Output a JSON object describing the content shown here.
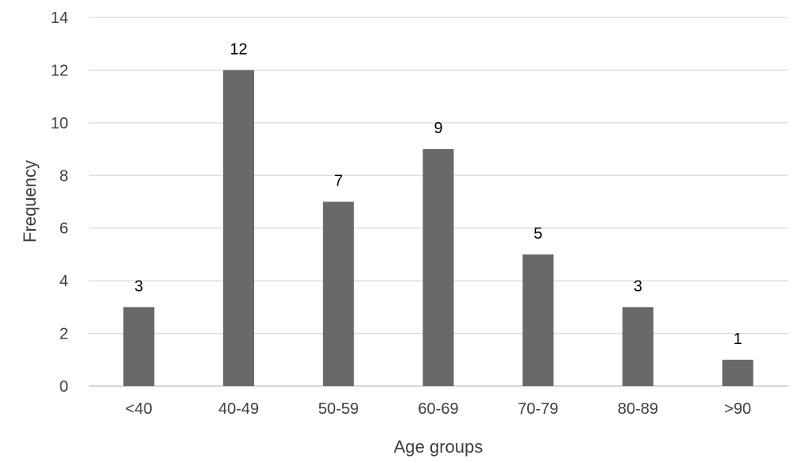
{
  "chart_data": {
    "type": "bar",
    "title": "",
    "xlabel": "Age groups",
    "ylabel": "Frequency",
    "categories": [
      "<40",
      "40-49",
      "50-59",
      "60-69",
      "70-79",
      "80-89",
      ">90"
    ],
    "values": [
      3,
      12,
      7,
      9,
      5,
      3,
      1
    ],
    "ylim": [
      0,
      14
    ],
    "yticks": [
      0,
      2,
      4,
      6,
      8,
      10,
      12,
      14
    ],
    "grid": true,
    "legend": "none",
    "data_labels": true,
    "colors": {
      "bar": "#696969",
      "grid": "#d9d9d9"
    }
  }
}
